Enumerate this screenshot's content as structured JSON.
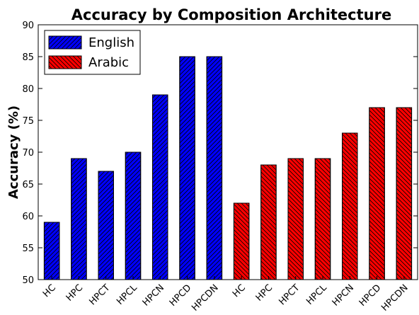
{
  "chart_data": {
    "type": "bar",
    "title": "Accuracy by Composition Architecture",
    "xlabel": "",
    "ylabel": "Accuracy (%)",
    "ylim": [
      50,
      90
    ],
    "yticks": [
      50,
      55,
      60,
      65,
      70,
      75,
      80,
      85,
      90
    ],
    "grid": false,
    "legend_placement": "top-left",
    "categories": [
      "HC",
      "HPC",
      "HPCT",
      "HPCL",
      "HPCN",
      "HPCD",
      "HPCDN",
      "HC",
      "HPC",
      "HPCT",
      "HPCL",
      "HPCN",
      "HPCD",
      "HPCDN"
    ],
    "series": [
      {
        "name": "English",
        "color": "#0000ff",
        "hatch": "forward-diagonal",
        "values": [
          59,
          69,
          67,
          70,
          79,
          85,
          85,
          null,
          null,
          null,
          null,
          null,
          null,
          null
        ]
      },
      {
        "name": "Arabic",
        "color": "#ff0000",
        "hatch": "backward-diagonal",
        "values": [
          null,
          null,
          null,
          null,
          null,
          null,
          null,
          62,
          68,
          69,
          69,
          73,
          77,
          77
        ]
      }
    ]
  }
}
